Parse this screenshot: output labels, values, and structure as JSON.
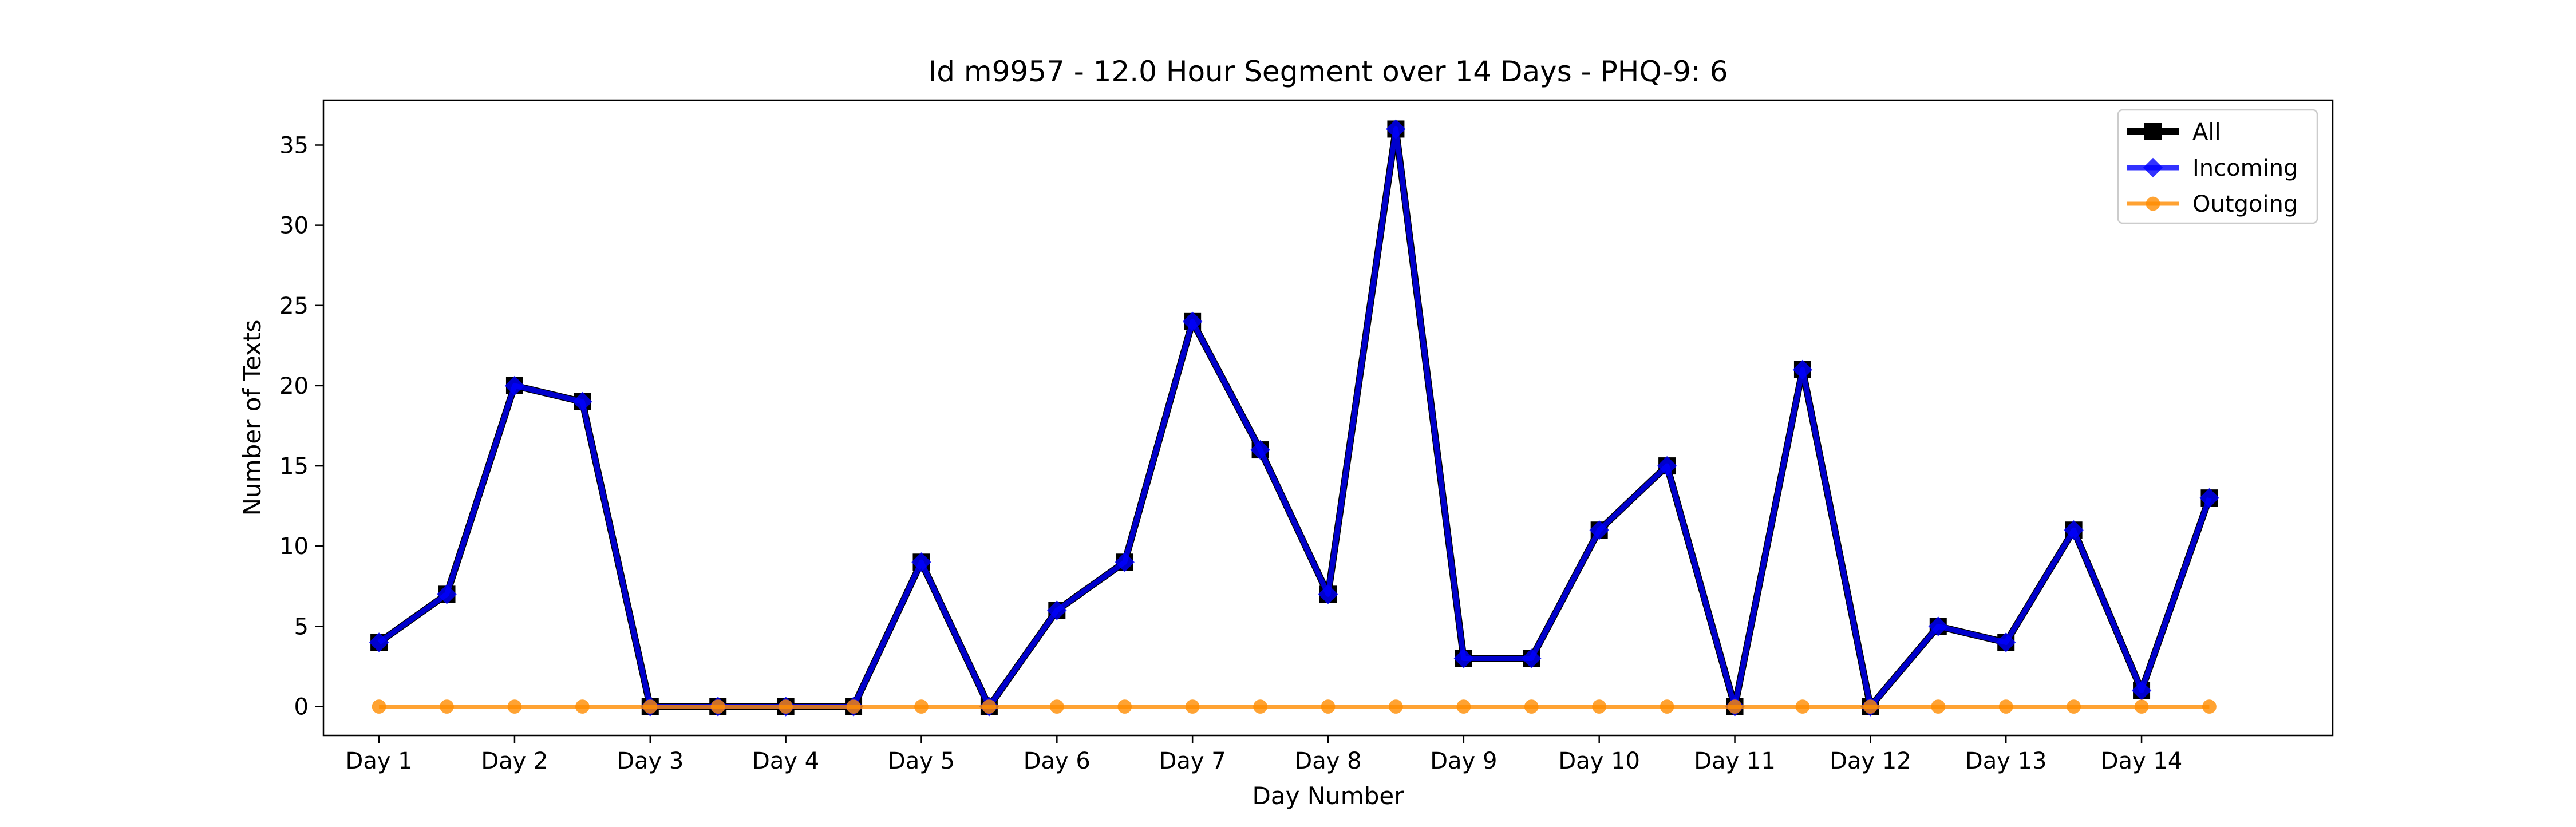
{
  "chart_data": {
    "type": "line",
    "title": "Id m9957 - 12.0 Hour Segment over 14 Days - PHQ-9: 6",
    "xlabel": "Day Number",
    "ylabel": "Number of Texts",
    "xlim": [
      -0.82,
      28.82
    ],
    "ylim": [
      -1.8,
      37.8
    ],
    "xticks": [
      0,
      2,
      4,
      6,
      8,
      10,
      12,
      14,
      16,
      18,
      20,
      22,
      24,
      26
    ],
    "xtick_labels": [
      "Day 1",
      "Day 2",
      "Day 3",
      "Day 4",
      "Day 5",
      "Day 6",
      "Day 7",
      "Day 8",
      "Day 9",
      "Day 10",
      "Day 11",
      "Day 12",
      "Day 13",
      "Day 14"
    ],
    "yticks": [
      0,
      5,
      10,
      15,
      20,
      25,
      30,
      35
    ],
    "legend_position": "top-right",
    "grid": false,
    "x": [
      0,
      1,
      2,
      3,
      4,
      5,
      6,
      7,
      8,
      9,
      10,
      11,
      12,
      13,
      14,
      15,
      16,
      17,
      18,
      19,
      20,
      21,
      22,
      23,
      24,
      25,
      26,
      27
    ],
    "series": [
      {
        "name": "All",
        "color": "#000000",
        "marker": "square",
        "values": [
          4,
          7,
          20,
          19,
          0,
          0,
          0,
          0,
          9,
          0,
          6,
          9,
          24,
          16,
          7,
          36,
          3,
          3,
          11,
          15,
          0,
          21,
          0,
          5,
          4,
          11,
          1,
          13
        ]
      },
      {
        "name": "Incoming",
        "color": "#0000ff",
        "marker": "diamond",
        "values": [
          4,
          7,
          20,
          19,
          0,
          0,
          0,
          0,
          9,
          0,
          6,
          9,
          24,
          16,
          7,
          36,
          3,
          3,
          11,
          15,
          0,
          21,
          0,
          5,
          4,
          11,
          1,
          13
        ]
      },
      {
        "name": "Outgoing",
        "color": "#ff8c00",
        "marker": "circle",
        "values": [
          0,
          0,
          0,
          0,
          0,
          0,
          0,
          0,
          0,
          0,
          0,
          0,
          0,
          0,
          0,
          0,
          0,
          0,
          0,
          0,
          0,
          0,
          0,
          0,
          0,
          0,
          0,
          0
        ]
      }
    ]
  }
}
